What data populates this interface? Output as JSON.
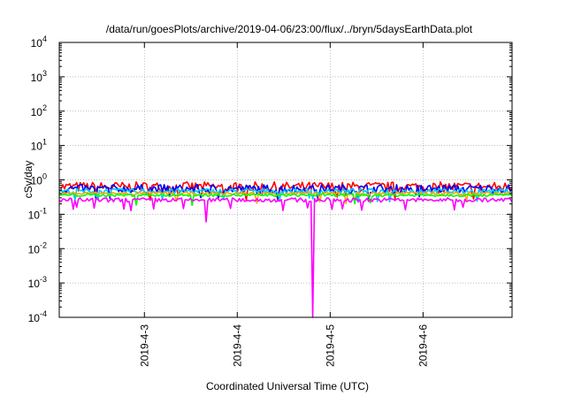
{
  "chart_data": {
    "type": "area",
    "title": "/data/run/goesPlots/archive/2019-04-06/23:00/flux/../bryn/5daysEarthData.plot",
    "xlabel": "Coordinated Universal Time (UTC)",
    "ylabel": "cSv/day",
    "yscale": "log",
    "ylim": [
      0.0001,
      10000
    ],
    "xlim": [
      "2019-04-02 02:00",
      "2019-04-06 23:00"
    ],
    "grid": true,
    "legend": "none",
    "y_ticks": [
      {
        "mantissa": "10",
        "exponent": "-4",
        "value": 0.0001
      },
      {
        "mantissa": "10",
        "exponent": "-3",
        "value": 0.001
      },
      {
        "mantissa": "10",
        "exponent": "-2",
        "value": 0.01
      },
      {
        "mantissa": "10",
        "exponent": "-1",
        "value": 0.1
      },
      {
        "mantissa": "10",
        "exponent": "0",
        "value": 1
      },
      {
        "mantissa": "10",
        "exponent": "1",
        "value": 10
      },
      {
        "mantissa": "10",
        "exponent": "2",
        "value": 100
      },
      {
        "mantissa": "10",
        "exponent": "3",
        "value": 1000
      },
      {
        "mantissa": "10",
        "exponent": "4",
        "value": 10000
      }
    ],
    "x_ticks": [
      {
        "label": "2019-4-3",
        "time": "2019-04-03 00:00"
      },
      {
        "label": "2019-4-4",
        "time": "2019-04-04 00:00"
      },
      {
        "label": "2019-4-5",
        "time": "2019-04-05 00:00"
      },
      {
        "label": "2019-4-6",
        "time": "2019-04-06 00:00"
      }
    ],
    "series_colors": [
      "#ff0000",
      "#0000ff",
      "#00c8ff",
      "#ffa500",
      "#00ff00",
      "#ff00ff"
    ],
    "bands": [
      {
        "color": "#ff0000",
        "typical": 0.62,
        "spread": 0.3
      },
      {
        "color": "#0000ff",
        "typical": 0.55,
        "spread": 0.25
      },
      {
        "color": "#00c8ff",
        "typical": 0.47,
        "spread": 0.15
      },
      {
        "color": "#ffa500",
        "typical": 0.4,
        "spread": 0.1
      },
      {
        "color": "#00ff00",
        "typical": 0.36,
        "spread": 0.08
      },
      {
        "color": "#ff00ff",
        "typical": 0.26,
        "spread": 0.12
      }
    ],
    "notable_points": [
      {
        "series": "#ff00ff",
        "time": "2019-04-03 16:00",
        "value": 0.06
      },
      {
        "series": "#ff00ff",
        "time": "2019-04-04 19:30",
        "value": 0.0001
      }
    ]
  }
}
